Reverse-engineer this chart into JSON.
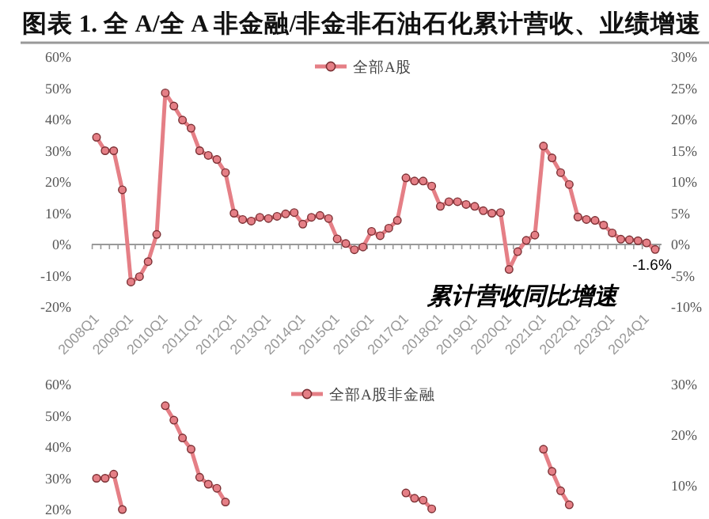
{
  "chart_data": [
    {
      "type": "line",
      "title": "图表 1. 全 A/全 A 非金融/非金非石油石化累计营收、业绩增速",
      "categories": [
        "2008Q1",
        null,
        null,
        null,
        "2009Q1",
        null,
        null,
        null,
        "2010Q1",
        null,
        null,
        null,
        "2011Q1",
        null,
        null,
        null,
        "2012Q1",
        null,
        null,
        null,
        "2013Q1",
        null,
        null,
        null,
        "2014Q1",
        null,
        null,
        null,
        "2015Q1",
        null,
        null,
        null,
        "2016Q1",
        null,
        null,
        null,
        "2017Q1",
        null,
        null,
        null,
        "2018Q1",
        null,
        null,
        null,
        "2019Q1",
        null,
        null,
        null,
        "2020Q1",
        null,
        null,
        null,
        "2021Q1",
        null,
        null,
        null,
        "2022Q1",
        null,
        null,
        null,
        "2023Q1",
        null,
        null,
        null,
        "2024Q1",
        null
      ],
      "series": [
        {
          "name": "全部A股",
          "color": "#e57f86",
          "values": [
            34.3,
            30,
            30,
            17.5,
            -12,
            -10.3,
            -5.5,
            3.2,
            48.5,
            44.3,
            39.8,
            37.2,
            30,
            28.5,
            27.2,
            23,
            10,
            8,
            7.5,
            8.7,
            8.3,
            9,
            9.8,
            10.2,
            6.5,
            8.7,
            9.3,
            8.3,
            1.8,
            0.3,
            -1.7,
            -0.8,
            4.2,
            2.8,
            5.2,
            7.7,
            21.3,
            20.3,
            20.3,
            18.7,
            12.2,
            13.7,
            13.7,
            12.8,
            12.2,
            10.8,
            10,
            10.2,
            -8,
            -2.3,
            1.3,
            3,
            31.5,
            27.7,
            23,
            19.2,
            8.8,
            8,
            7.7,
            6.2,
            3.7,
            1.7,
            1.5,
            1.2,
            0.5,
            -1.6
          ],
          "value_labels": [
            null,
            null,
            null,
            null,
            null,
            null,
            null,
            null,
            null,
            null,
            null,
            null,
            null,
            null,
            null,
            null,
            null,
            null,
            null,
            null,
            null,
            null,
            null,
            null,
            null,
            null,
            null,
            null,
            null,
            null,
            null,
            null,
            null,
            null,
            null,
            null,
            null,
            null,
            null,
            null,
            null,
            null,
            null,
            null,
            null,
            null,
            null,
            null,
            null,
            null,
            null,
            null,
            null,
            null,
            null,
            null,
            null,
            null,
            null,
            null,
            null,
            null,
            null,
            null,
            null,
            "-1.6%"
          ]
        }
      ],
      "ylim": [
        -20,
        60
      ],
      "yticks": [
        {
          "value": 60,
          "label": "60%"
        },
        {
          "value": 50,
          "label": "50%"
        },
        {
          "value": 40,
          "label": "40%"
        },
        {
          "value": 30,
          "label": "30%"
        },
        {
          "value": 20,
          "label": "20%"
        },
        {
          "value": 10,
          "label": "10%"
        },
        {
          "value": 0,
          "label": "0%"
        },
        {
          "value": -10,
          "label": "-10%"
        },
        {
          "value": -20,
          "label": "-20%"
        }
      ],
      "y2lim": [
        -10,
        30
      ],
      "y2ticks": [
        {
          "value": 30,
          "label": "30%"
        },
        {
          "value": 25,
          "label": "25%"
        },
        {
          "value": 20,
          "label": "20%"
        },
        {
          "value": 15,
          "label": "15%"
        },
        {
          "value": 10,
          "label": "10%"
        },
        {
          "value": 5,
          "label": "5%"
        },
        {
          "value": 0,
          "label": "0%"
        },
        {
          "value": -5,
          "label": "-5%"
        },
        {
          "value": -10,
          "label": "-10%"
        }
      ],
      "legend": "top",
      "marker": "circle",
      "annotations": [
        "累计营收同比增速"
      ]
    },
    {
      "type": "line",
      "categories": [
        null,
        null,
        null,
        null,
        null,
        null,
        null,
        null,
        null,
        null,
        null,
        null,
        null,
        null,
        null,
        null,
        null,
        null,
        null,
        null,
        null,
        null,
        null,
        null,
        null,
        null,
        null,
        null,
        null,
        null,
        null,
        null,
        null,
        null,
        null,
        null,
        null,
        null,
        null,
        null,
        null,
        null,
        null,
        null,
        null,
        null,
        null,
        null,
        null,
        null,
        null,
        null,
        null,
        null,
        null,
        null,
        null,
        null,
        null,
        null,
        null,
        null,
        null,
        null,
        null,
        null
      ],
      "series": [
        {
          "name": "全部A股非金融",
          "color": "#e57f86",
          "values": [
            30,
            30,
            31.3,
            20,
            null,
            null,
            null,
            null,
            53.2,
            48.6,
            42.9,
            39.3,
            30.3,
            28.1,
            26.8,
            22.4,
            null,
            null,
            null,
            null,
            null,
            null,
            null,
            null,
            null,
            null,
            null,
            null,
            null,
            null,
            null,
            null,
            null,
            null,
            null,
            null,
            25.3,
            23.6,
            23,
            20.2,
            null,
            null,
            null,
            null,
            null,
            null,
            null,
            null,
            null,
            null,
            null,
            null,
            39.3,
            32.2,
            26,
            21.5,
            null,
            null,
            null,
            null,
            null,
            null,
            null,
            null,
            null,
            null
          ]
        }
      ],
      "ylim": [
        20,
        60
      ],
      "yticks": [
        {
          "value": 60,
          "label": "60%"
        },
        {
          "value": 50,
          "label": "50%"
        },
        {
          "value": 40,
          "label": "40%"
        },
        {
          "value": 30,
          "label": "30%"
        },
        {
          "value": 20,
          "label": "20%"
        }
      ],
      "y2lim": [
        10,
        30
      ],
      "y2ticks": [
        {
          "value": 30,
          "label": "30%"
        },
        {
          "value": 20,
          "label": "20%"
        },
        {
          "value": 10,
          "label": "10%"
        }
      ],
      "legend": "top",
      "marker": "circle"
    }
  ]
}
